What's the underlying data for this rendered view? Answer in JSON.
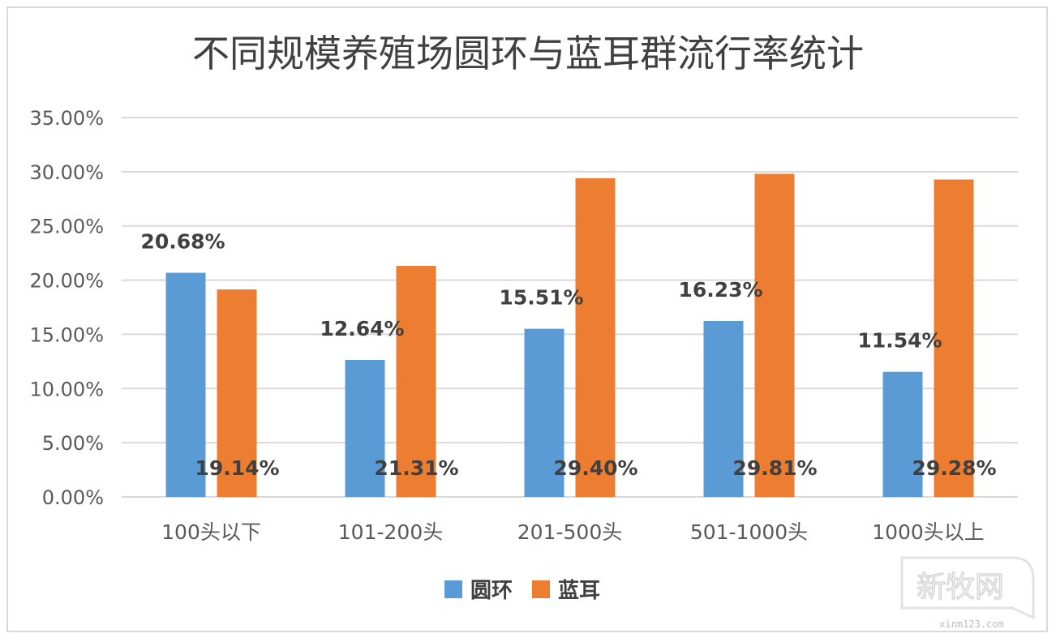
{
  "chart_data": {
    "type": "bar",
    "title": "不同规模养殖场圆环与蓝耳群流行率统计",
    "categories": [
      "100头以下",
      "101-200头",
      "201-500头",
      "501-1000头",
      "1000头以上"
    ],
    "series": [
      {
        "name": "圆环",
        "color": "#5b9bd5",
        "values": [
          20.68,
          12.64,
          15.51,
          16.23,
          11.54
        ],
        "labels": [
          "20.68%",
          "12.64%",
          "15.51%",
          "16.23%",
          "11.54%"
        ]
      },
      {
        "name": "蓝耳",
        "color": "#ed7d31",
        "values": [
          19.14,
          21.31,
          29.4,
          29.81,
          29.28
        ],
        "labels": [
          "19.14%",
          "21.31%",
          "29.40%",
          "29.81%",
          "29.28%"
        ]
      }
    ],
    "ylim": [
      0,
      35
    ],
    "yticks": [
      "0.00%",
      "5.00%",
      "10.00%",
      "15.00%",
      "20.00%",
      "25.00%",
      "30.00%",
      "35.00%"
    ],
    "grid": true,
    "legend_position": "bottom"
  },
  "watermark": {
    "brand": "新牧网",
    "url": "xinm123.com"
  }
}
